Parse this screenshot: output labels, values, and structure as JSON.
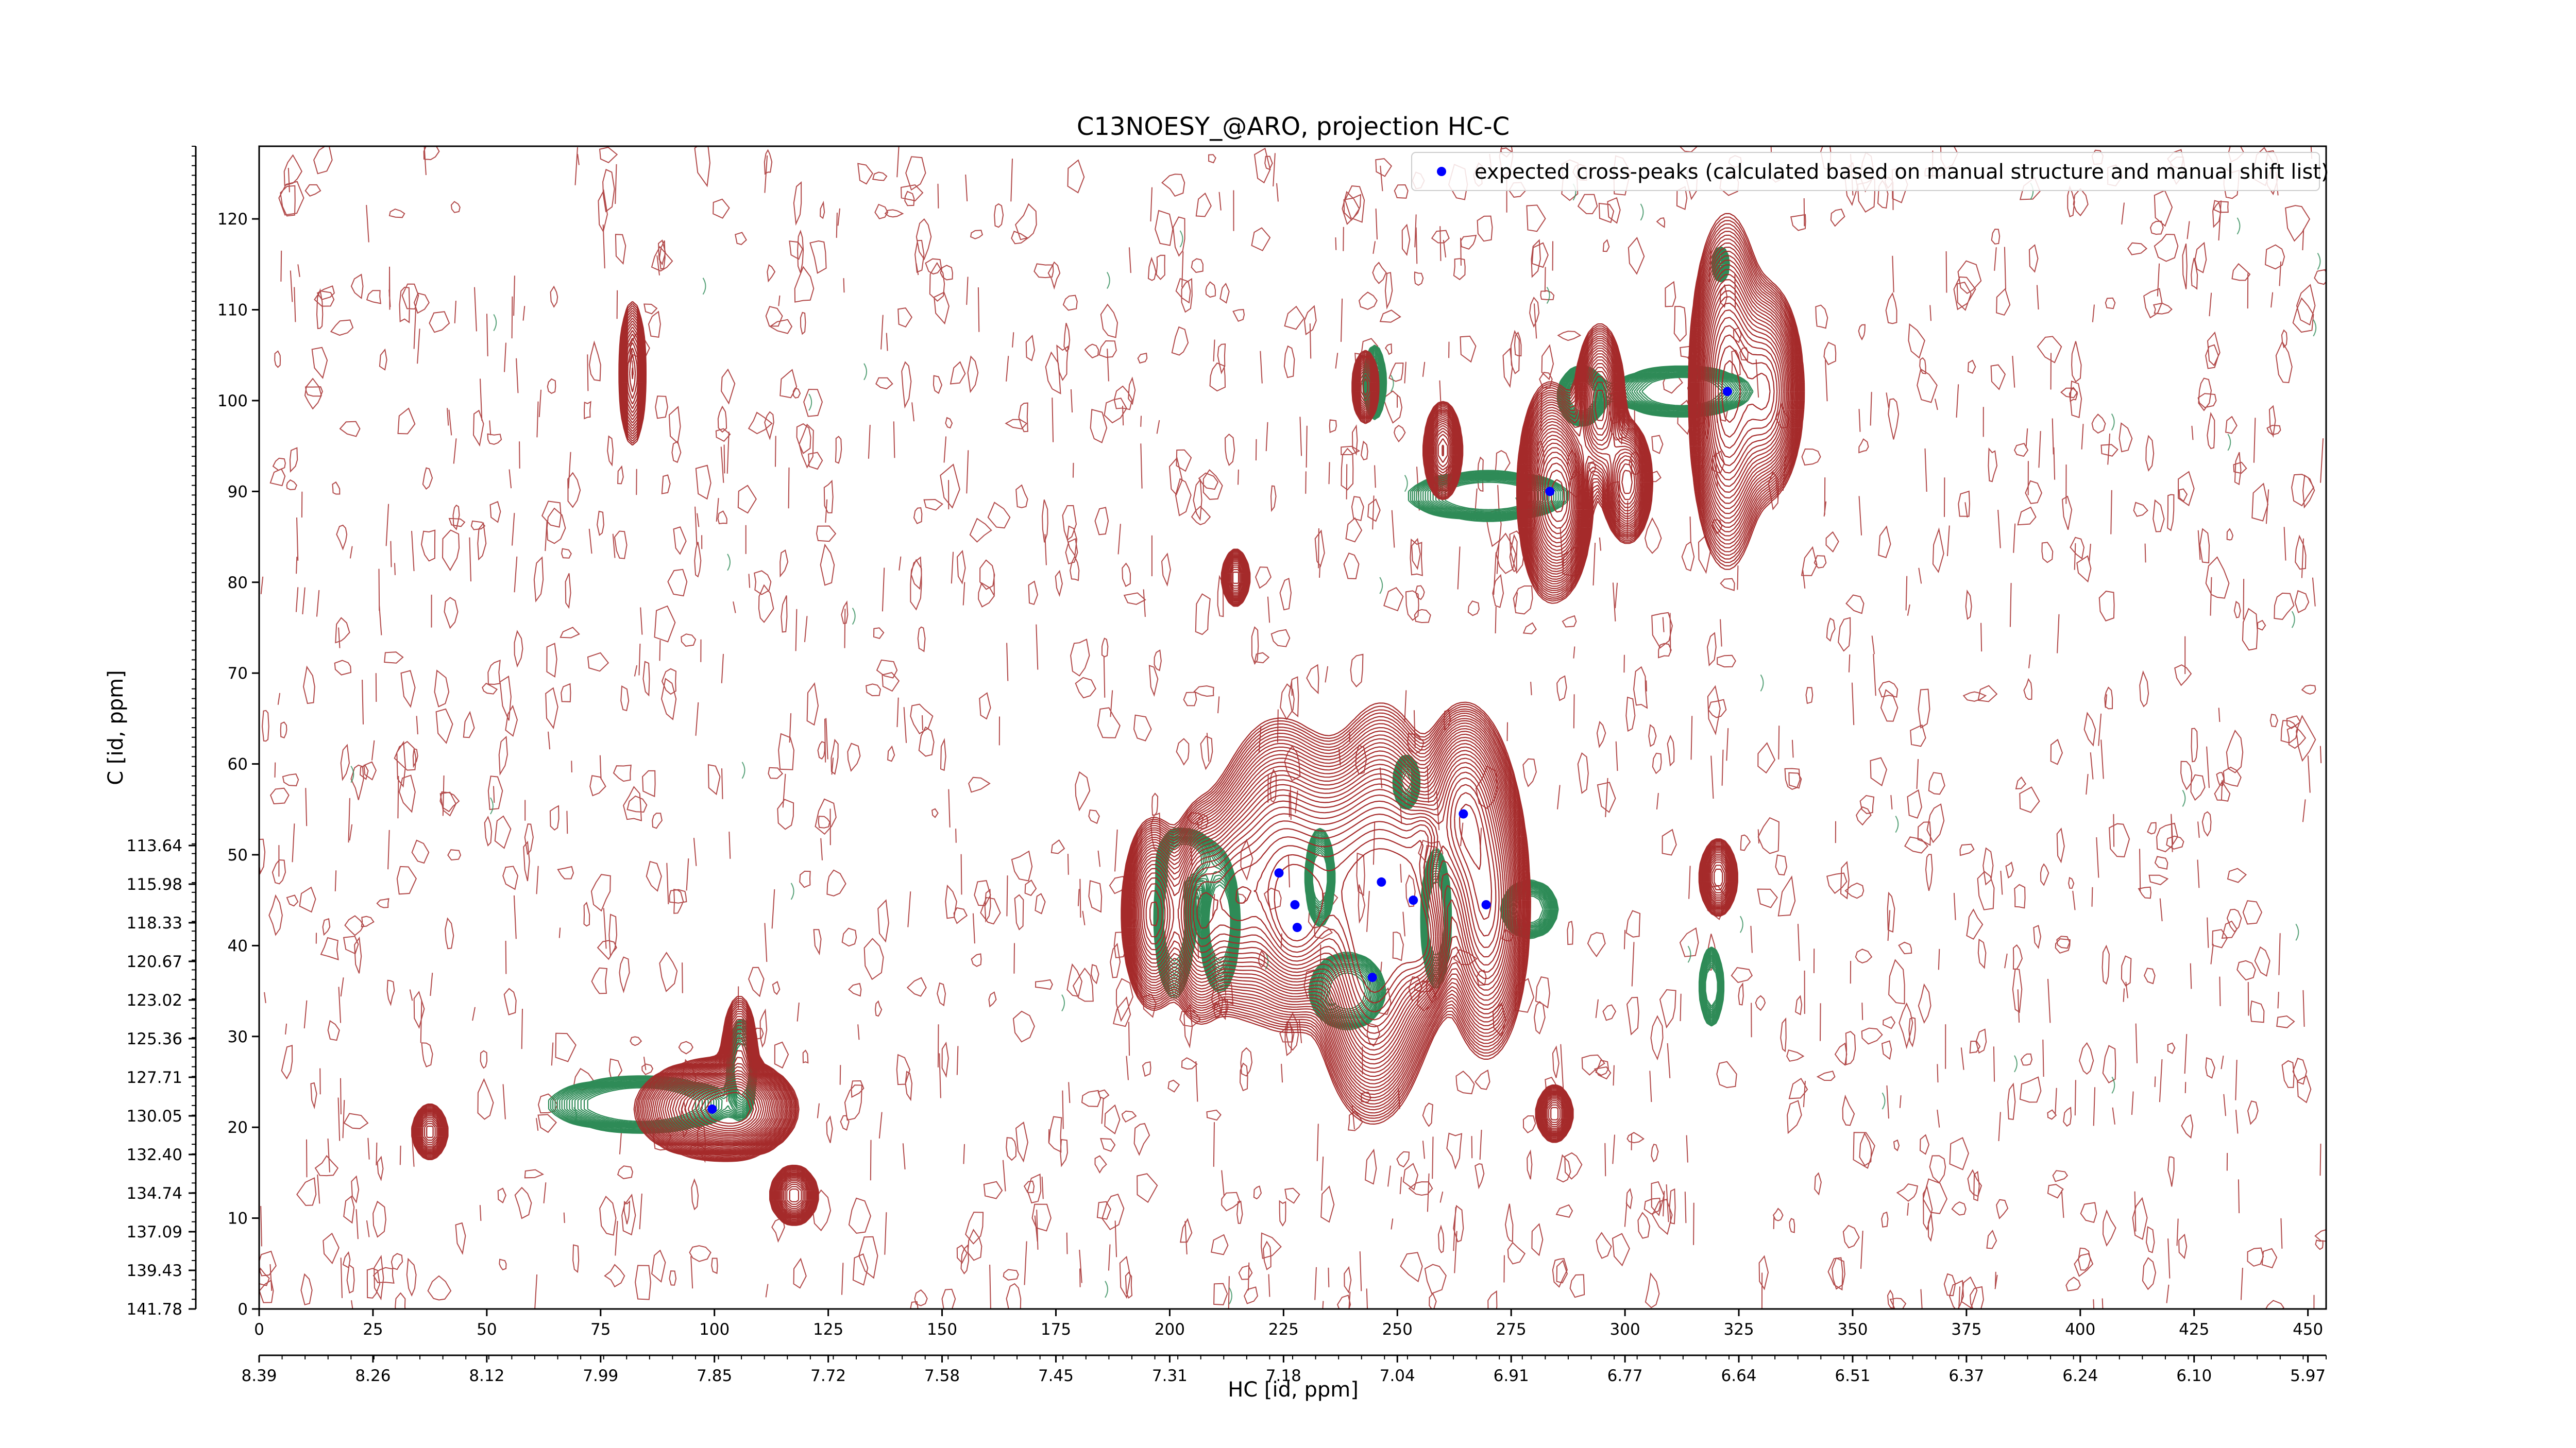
{
  "chart_data": {
    "type": "contour",
    "title": "C13NOESY_@ARO, projection HC-C",
    "xlabel": "HC [id, ppm]",
    "ylabel": "C [id, ppm]",
    "x_index_range": [
      0,
      454
    ],
    "y_index_range": [
      0,
      128
    ],
    "x_index_ticks": [
      0,
      25,
      50,
      75,
      100,
      125,
      150,
      175,
      200,
      225,
      250,
      275,
      300,
      325,
      350,
      375,
      400,
      425,
      450
    ],
    "x_ppm_ticks": [
      "8.39",
      "8.26",
      "8.12",
      "7.99",
      "7.85",
      "7.72",
      "7.58",
      "7.45",
      "7.31",
      "7.18",
      "7.04",
      "6.91",
      "6.77",
      "6.64",
      "6.51",
      "6.37",
      "6.24",
      "6.10",
      "5.97"
    ],
    "y_index_ticks": [
      0,
      10,
      20,
      30,
      40,
      50,
      60,
      70,
      80,
      90,
      100,
      110,
      120
    ],
    "y_ppm_ticks": [
      "141.78",
      "139.43",
      "137.09",
      "134.74",
      "132.40",
      "130.05",
      "127.71",
      "125.36",
      "123.02",
      "120.67",
      "118.33",
      "115.98",
      "113.64"
    ],
    "grid": false,
    "legend": {
      "position": "top-right",
      "entries": [
        "expected cross-peaks (calculated based on manual structure and manual shift list)"
      ]
    },
    "colors": {
      "positive": "#a52a2a",
      "negative": "#2e8b57",
      "marker": "#0000ff"
    },
    "series": [
      {
        "name": "expected cross-peaks (calculated based on manual structure and manual shift list)",
        "points": [
          {
            "x": 99.5,
            "y": 22.0
          },
          {
            "x": 224.0,
            "y": 48.0
          },
          {
            "x": 227.5,
            "y": 44.5
          },
          {
            "x": 228.0,
            "y": 42.0
          },
          {
            "x": 244.5,
            "y": 36.5
          },
          {
            "x": 246.5,
            "y": 47.0
          },
          {
            "x": 253.5,
            "y": 45.0
          },
          {
            "x": 264.5,
            "y": 54.5
          },
          {
            "x": 269.5,
            "y": 44.5
          },
          {
            "x": 283.5,
            "y": 90.0
          },
          {
            "x": 322.5,
            "y": 101.0
          }
        ]
      }
    ],
    "peaks": [
      {
        "x": 99.5,
        "y": 22.0,
        "amp": 1.0,
        "sx": 7.0,
        "sy": 2.2
      },
      {
        "x": 105.0,
        "y": 22.0,
        "amp": 0.95,
        "sx": 5.0,
        "sy": 2.0
      },
      {
        "x": 105.5,
        "y": 27.5,
        "amp": 0.35,
        "sx": 2.0,
        "sy": 3.5
      },
      {
        "x": 117.5,
        "y": 12.5,
        "amp": 0.5,
        "sx": 2.5,
        "sy": 1.5
      },
      {
        "x": 37.5,
        "y": 19.5,
        "amp": 0.35,
        "sx": 2.0,
        "sy": 1.5
      },
      {
        "x": 82.0,
        "y": 103.0,
        "amp": 0.35,
        "sx": 1.5,
        "sy": 4.0
      },
      {
        "x": 214.5,
        "y": 80.5,
        "amp": 0.4,
        "sx": 1.5,
        "sy": 1.5
      },
      {
        "x": 243.0,
        "y": 101.5,
        "amp": 0.35,
        "sx": 1.5,
        "sy": 2.0
      },
      {
        "x": 260.0,
        "y": 94.5,
        "amp": 0.5,
        "sx": 2.0,
        "sy": 2.5
      },
      {
        "x": 283.5,
        "y": 90.0,
        "amp": 0.9,
        "sx": 3.0,
        "sy": 5.0
      },
      {
        "x": 287.0,
        "y": 89.0,
        "amp": 0.7,
        "sx": 2.5,
        "sy": 4.0
      },
      {
        "x": 294.5,
        "y": 99.5,
        "amp": 0.6,
        "sx": 2.5,
        "sy": 4.0
      },
      {
        "x": 300.5,
        "y": 91.0,
        "amp": 0.6,
        "sx": 2.5,
        "sy": 3.0
      },
      {
        "x": 322.5,
        "y": 101.0,
        "amp": 1.0,
        "sx": 3.5,
        "sy": 8.0
      },
      {
        "x": 331.0,
        "y": 101.0,
        "amp": 0.85,
        "sx": 3.5,
        "sy": 5.0
      },
      {
        "x": 196.5,
        "y": 43.5,
        "amp": 0.8,
        "sx": 3.0,
        "sy": 4.5
      },
      {
        "x": 206.5,
        "y": 43.5,
        "amp": 0.85,
        "sx": 3.0,
        "sy": 5.0
      },
      {
        "x": 214.0,
        "y": 45.0,
        "amp": 0.8,
        "sx": 4.0,
        "sy": 5.0
      },
      {
        "x": 224.0,
        "y": 48.0,
        "amp": 0.95,
        "sx": 6.0,
        "sy": 7.0
      },
      {
        "x": 228.0,
        "y": 43.0,
        "amp": 0.9,
        "sx": 4.0,
        "sy": 4.0
      },
      {
        "x": 237.0,
        "y": 47.0,
        "amp": 0.9,
        "sx": 6.0,
        "sy": 6.0
      },
      {
        "x": 244.5,
        "y": 36.5,
        "amp": 1.0,
        "sx": 5.0,
        "sy": 6.5
      },
      {
        "x": 246.5,
        "y": 47.0,
        "amp": 1.0,
        "sx": 5.0,
        "sy": 8.0
      },
      {
        "x": 253.5,
        "y": 45.0,
        "amp": 1.0,
        "sx": 4.0,
        "sy": 6.0
      },
      {
        "x": 264.5,
        "y": 54.5,
        "amp": 0.95,
        "sx": 4.0,
        "sy": 5.0
      },
      {
        "x": 269.5,
        "y": 44.5,
        "amp": 0.95,
        "sx": 4.0,
        "sy": 7.0
      },
      {
        "x": 256.0,
        "y": 40.0,
        "amp": 0.7,
        "sx": 3.0,
        "sy": 3.0
      },
      {
        "x": 256.0,
        "y": 52.0,
        "amp": 0.5,
        "sx": 2.0,
        "sy": 2.0
      },
      {
        "x": 320.5,
        "y": 47.5,
        "amp": 0.45,
        "sx": 2.0,
        "sy": 2.0
      },
      {
        "x": 284.5,
        "y": 21.5,
        "amp": 0.4,
        "sx": 2.0,
        "sy": 1.5
      }
    ],
    "negative_peaks": [
      {
        "x": 84.0,
        "y": 22.5,
        "amp": 0.7,
        "sx": 9.0,
        "sy": 1.3
      },
      {
        "x": 106.0,
        "y": 26.5,
        "amp": 0.5,
        "sx": 1.5,
        "sy": 2.5
      },
      {
        "x": 201.0,
        "y": 43.0,
        "amp": 0.55,
        "sx": 2.0,
        "sy": 4.0
      },
      {
        "x": 211.0,
        "y": 42.5,
        "amp": 0.55,
        "sx": 2.0,
        "sy": 3.5
      },
      {
        "x": 204.0,
        "y": 49.5,
        "amp": 0.45,
        "sx": 3.0,
        "sy": 1.5
      },
      {
        "x": 233.0,
        "y": 47.5,
        "amp": 0.5,
        "sx": 1.5,
        "sy": 2.5
      },
      {
        "x": 258.5,
        "y": 43.0,
        "amp": 0.55,
        "sx": 1.5,
        "sy": 3.5
      },
      {
        "x": 279.0,
        "y": 44.0,
        "amp": 0.45,
        "sx": 3.0,
        "sy": 1.5
      },
      {
        "x": 239.0,
        "y": 35.0,
        "amp": 0.45,
        "sx": 4.0,
        "sy": 2.0
      },
      {
        "x": 252.0,
        "y": 58.0,
        "amp": 0.35,
        "sx": 1.5,
        "sy": 1.5
      },
      {
        "x": 270.0,
        "y": 89.5,
        "amp": 0.6,
        "sx": 8.0,
        "sy": 1.2
      },
      {
        "x": 290.5,
        "y": 100.5,
        "amp": 0.5,
        "sx": 2.5,
        "sy": 1.5
      },
      {
        "x": 312.5,
        "y": 101.0,
        "amp": 0.6,
        "sx": 7.0,
        "sy": 1.2
      },
      {
        "x": 319.0,
        "y": 35.5,
        "amp": 0.5,
        "sx": 1.2,
        "sy": 2.0
      },
      {
        "x": 245.0,
        "y": 102.0,
        "amp": 0.4,
        "sx": 1.2,
        "sy": 2.0
      },
      {
        "x": 321.0,
        "y": 115.0,
        "amp": 0.3,
        "sx": 1.0,
        "sy": 1.0
      }
    ]
  }
}
